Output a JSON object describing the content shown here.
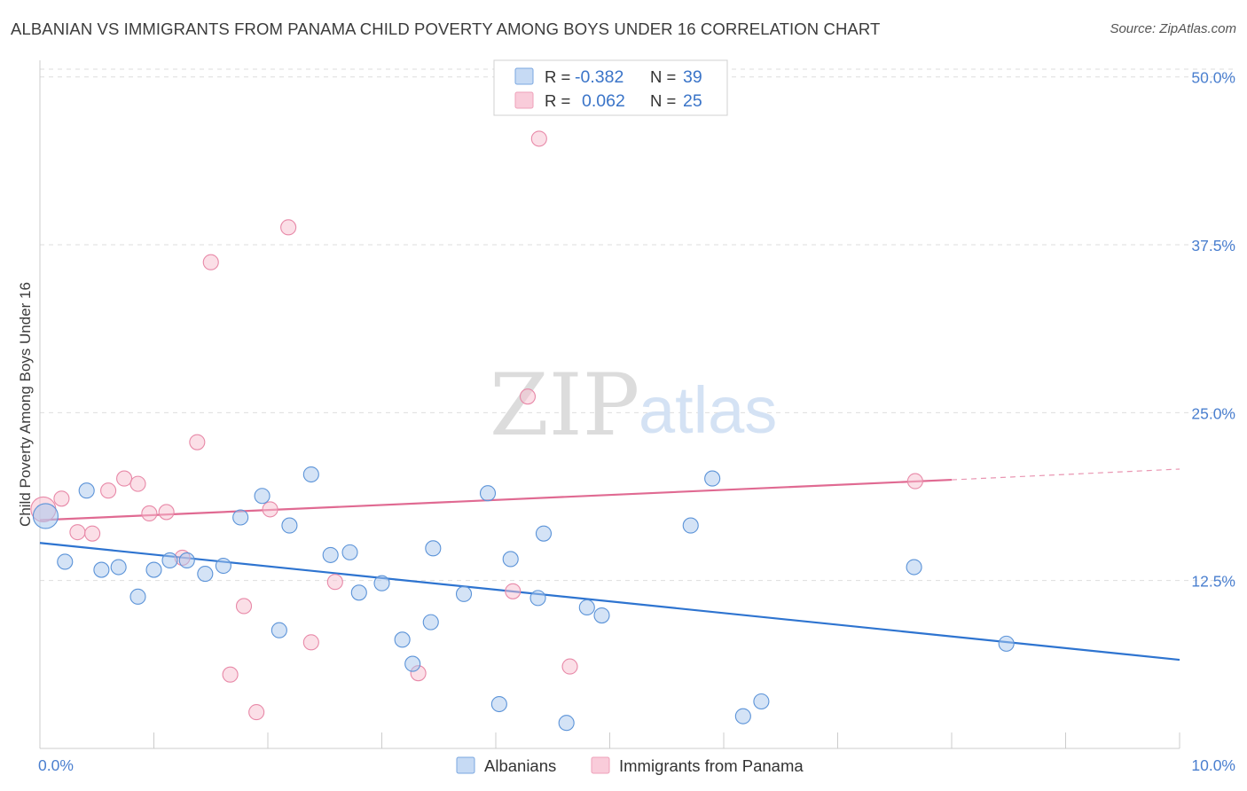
{
  "header": {
    "title": "ALBANIAN VS IMMIGRANTS FROM PANAMA CHILD POVERTY AMONG BOYS UNDER 16 CORRELATION CHART",
    "source": "Source: ZipAtlas.com"
  },
  "watermark": {
    "zip": "ZIP",
    "atlas": "atlas"
  },
  "colors": {
    "blue_fill": "#a9c8ee",
    "blue_stroke": "#5b93d8",
    "blue_line": "#2e74d0",
    "pink_fill": "#f7bfd0",
    "pink_stroke": "#e889a8",
    "pink_line": "#e06a92",
    "tick_text": "#4a7fcf",
    "grid": "#dedede"
  },
  "legend_top": [
    {
      "r_label": "R =",
      "r_value": "-0.382",
      "n_label": "N =",
      "n_value": "39"
    },
    {
      "r_label": "R =",
      "r_value": "0.062",
      "n_label": "N =",
      "n_value": "25"
    }
  ],
  "legend_bottom": [
    "Albanians",
    "Immigrants from Panama"
  ],
  "chart_data": {
    "type": "scatter",
    "title": "ALBANIAN VS IMMIGRANTS FROM PANAMA CHILD POVERTY AMONG BOYS UNDER 16 CORRELATION CHART",
    "xlabel": "",
    "ylabel": "Child Poverty Among Boys Under 16",
    "xlim": [
      0,
      10
    ],
    "ylim": [
      0,
      51.5
    ],
    "x_tick_labels": [
      "0.0%",
      "10.0%"
    ],
    "y_ticks": [
      12.5,
      25.0,
      37.5,
      50.0
    ],
    "y_tick_labels": [
      "12.5%",
      "25.0%",
      "37.5%",
      "50.0%"
    ],
    "grid": "horizontal dashed",
    "series": [
      {
        "name": "Albanians",
        "r": -0.382,
        "n": 39,
        "trend": {
          "x": [
            0,
            10
          ],
          "y": [
            15.3,
            6.6
          ]
        },
        "points": [
          {
            "x": 0.05,
            "y": 17.3,
            "big": true
          },
          {
            "x": 0.22,
            "y": 13.9
          },
          {
            "x": 0.41,
            "y": 19.2
          },
          {
            "x": 0.54,
            "y": 13.3
          },
          {
            "x": 0.69,
            "y": 13.5
          },
          {
            "x": 0.86,
            "y": 11.3
          },
          {
            "x": 1.0,
            "y": 13.3
          },
          {
            "x": 1.14,
            "y": 14.0
          },
          {
            "x": 1.29,
            "y": 14.0
          },
          {
            "x": 1.45,
            "y": 13.0
          },
          {
            "x": 1.61,
            "y": 13.6
          },
          {
            "x": 1.76,
            "y": 17.2
          },
          {
            "x": 1.95,
            "y": 18.8
          },
          {
            "x": 2.1,
            "y": 8.8
          },
          {
            "x": 2.19,
            "y": 16.6
          },
          {
            "x": 2.38,
            "y": 20.4
          },
          {
            "x": 2.55,
            "y": 14.4
          },
          {
            "x": 2.72,
            "y": 14.6
          },
          {
            "x": 2.8,
            "y": 11.6
          },
          {
            "x": 3.0,
            "y": 12.3
          },
          {
            "x": 3.18,
            "y": 8.1
          },
          {
            "x": 3.27,
            "y": 6.3
          },
          {
            "x": 3.43,
            "y": 9.4
          },
          {
            "x": 3.45,
            "y": 14.9
          },
          {
            "x": 3.72,
            "y": 11.5
          },
          {
            "x": 3.93,
            "y": 19.0
          },
          {
            "x": 4.03,
            "y": 3.3
          },
          {
            "x": 4.13,
            "y": 14.1
          },
          {
            "x": 4.37,
            "y": 11.2
          },
          {
            "x": 4.42,
            "y": 16.0
          },
          {
            "x": 4.62,
            "y": 1.9
          },
          {
            "x": 4.8,
            "y": 10.5
          },
          {
            "x": 4.93,
            "y": 9.9
          },
          {
            "x": 5.71,
            "y": 16.6
          },
          {
            "x": 5.9,
            "y": 20.1
          },
          {
            "x": 6.17,
            "y": 2.4
          },
          {
            "x": 6.33,
            "y": 3.5
          },
          {
            "x": 7.67,
            "y": 13.5
          },
          {
            "x": 8.48,
            "y": 7.8
          }
        ]
      },
      {
        "name": "Immigrants from Panama",
        "r": 0.062,
        "n": 25,
        "trend": {
          "x": [
            0,
            8.0
          ],
          "y": [
            17.0,
            20.0
          ]
        },
        "trend_dashed": {
          "x": [
            8.0,
            10
          ],
          "y": [
            20.0,
            20.8
          ]
        },
        "points": [
          {
            "x": 0.03,
            "y": 17.8,
            "big": true
          },
          {
            "x": 0.19,
            "y": 18.6
          },
          {
            "x": 0.33,
            "y": 16.1
          },
          {
            "x": 0.46,
            "y": 16.0
          },
          {
            "x": 0.6,
            "y": 19.2
          },
          {
            "x": 0.74,
            "y": 20.1
          },
          {
            "x": 0.86,
            "y": 19.7
          },
          {
            "x": 0.96,
            "y": 17.5
          },
          {
            "x": 1.11,
            "y": 17.6
          },
          {
            "x": 1.25,
            "y": 14.2
          },
          {
            "x": 1.38,
            "y": 22.8
          },
          {
            "x": 1.5,
            "y": 36.2
          },
          {
            "x": 1.67,
            "y": 5.5
          },
          {
            "x": 1.79,
            "y": 10.6
          },
          {
            "x": 1.9,
            "y": 2.7
          },
          {
            "x": 2.02,
            "y": 17.8
          },
          {
            "x": 2.18,
            "y": 38.8
          },
          {
            "x": 2.38,
            "y": 7.9
          },
          {
            "x": 2.59,
            "y": 12.4
          },
          {
            "x": 3.32,
            "y": 5.6
          },
          {
            "x": 4.15,
            "y": 11.7
          },
          {
            "x": 4.28,
            "y": 26.2
          },
          {
            "x": 4.38,
            "y": 45.4
          },
          {
            "x": 4.65,
            "y": 6.1
          },
          {
            "x": 7.68,
            "y": 19.9
          }
        ]
      }
    ]
  }
}
